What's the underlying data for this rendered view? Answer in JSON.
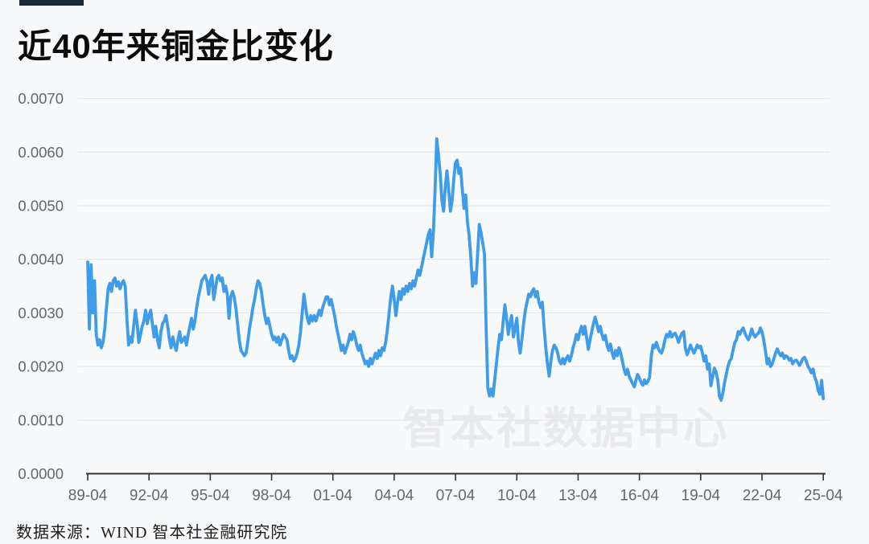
{
  "header": {
    "title": "近40年来铜金比变化",
    "accent_bar_color": "#1c2a38"
  },
  "watermark": "智本社数据中心",
  "footer": {
    "source": "数据来源：WIND 智本社金融研究院"
  },
  "chart_data": {
    "type": "line",
    "title": "近40年来铜金比变化",
    "series_name": "铜金比",
    "line_color": "#3E9CE9",
    "grid": true,
    "legend": "none",
    "x_start": "1989-04",
    "x_end": "2025-04",
    "frequency": "monthly",
    "x_tick_labels": [
      "89-04",
      "92-04",
      "95-04",
      "98-04",
      "01-04",
      "04-04",
      "07-04",
      "10-04",
      "13-04",
      "16-04",
      "19-04",
      "22-04",
      "25-04"
    ],
    "y_tick_labels": [
      "0.0000",
      "0.0010",
      "0.0020",
      "0.0030",
      "0.0040",
      "0.0050",
      "0.0060",
      "0.0070"
    ],
    "ylim": [
      0,
      0.007
    ],
    "value_scale": 0.0001,
    "values": [
      39.5,
      27,
      39,
      30,
      36,
      26,
      24,
      25,
      23.5,
      24.5,
      27,
      31,
      34.5,
      35.5,
      34,
      36,
      36.5,
      35,
      35.8,
      34.5,
      35.5,
      36,
      35,
      29,
      24,
      25.5,
      24.5,
      27.5,
      30.5,
      28,
      24.5,
      26,
      27.5,
      28.5,
      30.5,
      28,
      29.5,
      30.5,
      28,
      25.5,
      27.5,
      25,
      23.5,
      26.5,
      28,
      28.5,
      29.5,
      27.5,
      25,
      23.5,
      25.5,
      24,
      23,
      25,
      26.5,
      24.5,
      25,
      25.5,
      24,
      26,
      27.5,
      29,
      27,
      28.5,
      31,
      33,
      34.5,
      36,
      36.5,
      37,
      36,
      33.5,
      36,
      37,
      32.5,
      34.5,
      36.5,
      37,
      36,
      36.5,
      34,
      35,
      33.5,
      29,
      33,
      34,
      33,
      31,
      28,
      25,
      23,
      22.5,
      22,
      22.5,
      24.5,
      27,
      29,
      31,
      32.5,
      34.5,
      36,
      35.5,
      34,
      31.5,
      29.5,
      28,
      29,
      27.5,
      26,
      25,
      25.5,
      24.5,
      25.5,
      24,
      25,
      26,
      25.5,
      25,
      23,
      21.5,
      22,
      21,
      21.5,
      22.5,
      24,
      26.5,
      30,
      33.5,
      31,
      29,
      28,
      29.5,
      28.5,
      29.5,
      28.5,
      29.5,
      30.5,
      29.5,
      31,
      32,
      33,
      33,
      31.5,
      32.5,
      31,
      29.5,
      27.5,
      26,
      24.5,
      23,
      24,
      22.5,
      23.5,
      24.5,
      26,
      25,
      26.5,
      25.5,
      24,
      23,
      24,
      22.5,
      21.5,
      20.5,
      21,
      20,
      21.5,
      20.5,
      21.5,
      22.5,
      21.5,
      23,
      22,
      23.5,
      23,
      24.5,
      27,
      30,
      33,
      35,
      32.5,
      29.5,
      32,
      34,
      32.5,
      34.5,
      33.5,
      35,
      34,
      35.5,
      34.5,
      36,
      35,
      36.5,
      38,
      37,
      38.5,
      40,
      41.5,
      43,
      44.5,
      45.5,
      40.5,
      45,
      53,
      62.5,
      59.5,
      56,
      51,
      49,
      53.5,
      56.5,
      53,
      49,
      51,
      55,
      58,
      58.5,
      56,
      57,
      53,
      49.5,
      52,
      47,
      44.5,
      40.5,
      35,
      37.5,
      35.5,
      41,
      46.5,
      45,
      43,
      41,
      27,
      16,
      14.5,
      15.8,
      14.5,
      17.5,
      20.5,
      23.5,
      26,
      25,
      28.5,
      31.5,
      29,
      26,
      28,
      29.5,
      25.5,
      27,
      29,
      24.5,
      22.5,
      25,
      28,
      30.5,
      32,
      33.5,
      33,
      34,
      34.5,
      33,
      34,
      32,
      31,
      32,
      27.5,
      23.5,
      20.5,
      18.2,
      21,
      23,
      24,
      23.5,
      22.5,
      21,
      20.5,
      21.5,
      20.5,
      21.5,
      22,
      21,
      22,
      23.5,
      24.5,
      26,
      25,
      26.5,
      27.5,
      26,
      27.5,
      25.5,
      23.2,
      25,
      26.5,
      28,
      29.2,
      28,
      26.5,
      27.5,
      26,
      25,
      25.8,
      24,
      23,
      24.2,
      22.5,
      21.5,
      23,
      22,
      23.5,
      22.5,
      21,
      19.5,
      18.5,
      19.5,
      18.2,
      17.5,
      16.8,
      16.2,
      17.5,
      18.5,
      17.8,
      17,
      16.5,
      17.5,
      16.8,
      17.2,
      18,
      22,
      24,
      23.5,
      24.5,
      23.5,
      22.8,
      22.5,
      23.5,
      25,
      26,
      25.5,
      26.5,
      25.5,
      26,
      26.2,
      25.5,
      24.5,
      25.5,
      26.2,
      26.5,
      23.5,
      22.2,
      23,
      24,
      23.2,
      22.5,
      23.2,
      24,
      23.5,
      23.8,
      22.5,
      21,
      22,
      19.5,
      20.5,
      16.4,
      18,
      19.7,
      19,
      17.5,
      14.5,
      13.7,
      15,
      17,
      18.5,
      20,
      21,
      21.5,
      23,
      24.5,
      25,
      26.5,
      26,
      26.8,
      27.2,
      26.2,
      25.5,
      25,
      25.8,
      27,
      26,
      25.5,
      26,
      26.2,
      27.2,
      26.5,
      25,
      23,
      20.5,
      21.5,
      20,
      20.5,
      21.5,
      22.5,
      23.3,
      22.5,
      22,
      22.5,
      21.5,
      22,
      21.8,
      21.2,
      21.5,
      20.5,
      21,
      21.2,
      20.8,
      20.2,
      20.8,
      21.5,
      21.7,
      21,
      20,
      19.5,
      18.8,
      19.5,
      18,
      17.2,
      15.5,
      14.8,
      17.4,
      14
    ]
  }
}
